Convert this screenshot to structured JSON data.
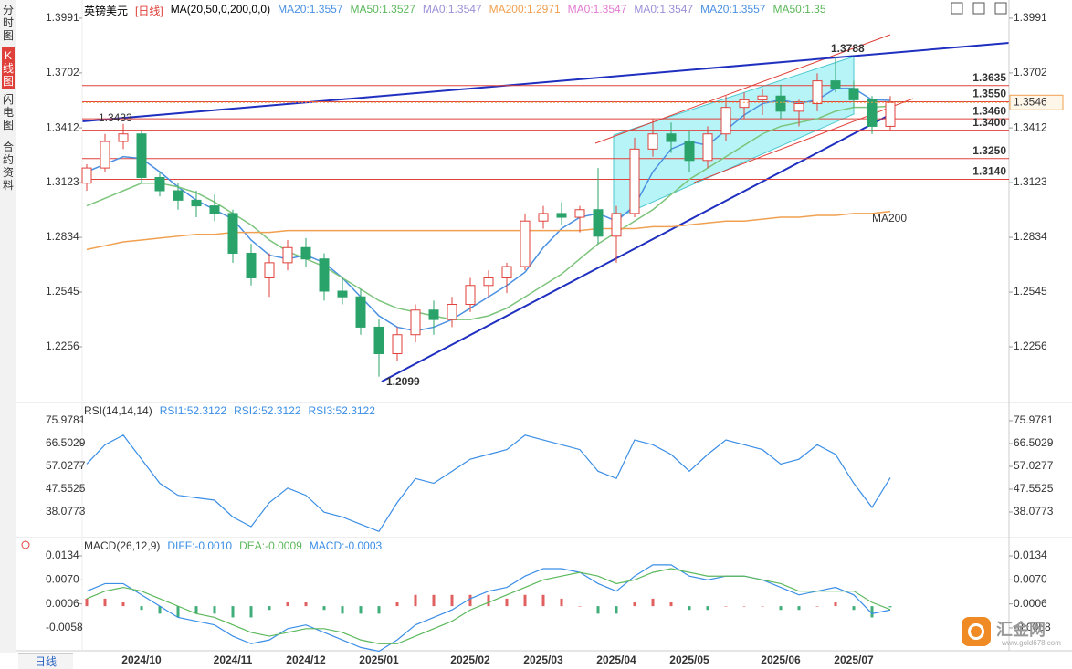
{
  "sidebar": {
    "tabs": [
      "分时图",
      "K线图",
      "闪电图",
      "合约资料"
    ],
    "active": 1
  },
  "legend": {
    "symbol": "英镑美元",
    "period": "[日线]",
    "ma_label": "MA(20,50,0,200,0,0)",
    "items": [
      {
        "text": "MA20:1.3557",
        "color": "#4a90e2"
      },
      {
        "text": "MA50:1.3527",
        "color": "#5cb85c"
      },
      {
        "text": "MA0:1.3547",
        "color": "#9b8fd6"
      },
      {
        "text": "MA200:1.2971",
        "color": "#f0a050"
      },
      {
        "text": "MA0:1.3547",
        "color": "#e27ad0"
      },
      {
        "text": "MA0:1.3547",
        "color": "#9b8fd6"
      },
      {
        "text": "MA20:1.3557",
        "color": "#4a90e2"
      },
      {
        "text": "MA50:1.35",
        "color": "#5cb85c"
      }
    ]
  },
  "chart_data": [
    {
      "type": "candlestick",
      "categories": [
        null,
        null,
        null,
        "2024/10",
        null,
        null,
        null,
        null,
        "2024/11",
        null,
        null,
        null,
        "2024/12",
        null,
        null,
        null,
        "2025/01",
        null,
        null,
        null,
        null,
        "2025/02",
        null,
        null,
        null,
        "2025/03",
        null,
        null,
        null,
        "2025/04",
        null,
        null,
        null,
        "2025/05",
        null,
        null,
        null,
        null,
        "2025/06",
        null,
        null,
        null,
        "2025/07",
        null,
        null
      ],
      "open": [
        1.312,
        1.32,
        1.334,
        1.338,
        1.315,
        1.308,
        1.303,
        1.3,
        1.296,
        1.275,
        1.262,
        1.27,
        1.278,
        1.272,
        1.255,
        1.252,
        1.236,
        1.222,
        1.232,
        1.245,
        1.24,
        1.248,
        1.258,
        1.262,
        1.268,
        1.292,
        1.296,
        1.294,
        1.298,
        1.284,
        1.296,
        1.33,
        1.338,
        1.334,
        1.324,
        1.338,
        1.352,
        1.356,
        1.358,
        1.35,
        1.354,
        1.366,
        1.362,
        1.356,
        1.342
      ],
      "high": [
        1.322,
        1.338,
        1.3433,
        1.34,
        1.318,
        1.312,
        1.308,
        1.306,
        1.298,
        1.28,
        1.275,
        1.282,
        1.283,
        1.275,
        1.262,
        1.256,
        1.24,
        1.236,
        1.248,
        1.25,
        1.252,
        1.262,
        1.266,
        1.27,
        1.296,
        1.3,
        1.302,
        1.3,
        1.32,
        1.3,
        1.336,
        1.346,
        1.344,
        1.34,
        1.342,
        1.358,
        1.36,
        1.362,
        1.364,
        1.356,
        1.37,
        1.3788,
        1.366,
        1.358,
        1.358
      ],
      "low": [
        1.308,
        1.318,
        1.33,
        1.312,
        1.305,
        1.298,
        1.294,
        1.292,
        1.27,
        1.258,
        1.252,
        1.266,
        1.268,
        1.25,
        1.248,
        1.232,
        1.2099,
        1.218,
        1.228,
        1.232,
        1.236,
        1.244,
        1.252,
        1.254,
        1.266,
        1.288,
        1.29,
        1.286,
        1.28,
        1.27,
        1.294,
        1.326,
        1.328,
        1.318,
        1.32,
        1.334,
        1.346,
        1.348,
        1.346,
        1.342,
        1.35,
        1.36,
        1.352,
        1.338,
        1.34
      ],
      "close": [
        1.32,
        1.334,
        1.338,
        1.315,
        1.308,
        1.303,
        1.3,
        1.296,
        1.275,
        1.262,
        1.27,
        1.278,
        1.272,
        1.255,
        1.252,
        1.236,
        1.222,
        1.232,
        1.245,
        1.24,
        1.248,
        1.258,
        1.262,
        1.268,
        1.292,
        1.296,
        1.294,
        1.298,
        1.284,
        1.296,
        1.33,
        1.338,
        1.334,
        1.324,
        1.338,
        1.352,
        1.356,
        1.358,
        1.35,
        1.354,
        1.366,
        1.362,
        1.356,
        1.342,
        1.3546
      ],
      "up_color": "#e0403a",
      "down_color": "#2aa36b",
      "series": [
        {
          "color": "#4a90e2",
          "values": [
            1.318,
            1.322,
            1.326,
            1.325,
            1.318,
            1.31,
            1.303,
            1.298,
            1.293,
            1.282,
            1.274,
            1.272,
            1.274,
            1.27,
            1.262,
            1.252,
            1.242,
            1.236,
            1.234,
            1.236,
            1.24,
            1.246,
            1.252,
            1.258,
            1.265,
            1.278,
            1.288,
            1.294,
            1.296,
            1.292,
            1.3,
            1.318,
            1.33,
            1.334,
            1.332,
            1.34,
            1.348,
            1.354,
            1.356,
            1.354,
            1.356,
            1.362,
            1.362,
            1.356,
            1.3557
          ]
        },
        {
          "color": "#7cc47c",
          "values": [
            1.3,
            1.304,
            1.308,
            1.312,
            1.312,
            1.31,
            1.307,
            1.302,
            1.296,
            1.29,
            1.282,
            1.276,
            1.272,
            1.268,
            1.262,
            1.256,
            1.25,
            1.246,
            1.244,
            1.242,
            1.24,
            1.24,
            1.242,
            1.246,
            1.252,
            1.258,
            1.264,
            1.272,
            1.28,
            1.286,
            1.292,
            1.298,
            1.306,
            1.314,
            1.32,
            1.326,
            1.332,
            1.338,
            1.342,
            1.344,
            1.346,
            1.35,
            1.352,
            1.352,
            1.3527
          ]
        },
        {
          "name": "MA200",
          "color": "#f0a050",
          "values": [
            1.277,
            1.279,
            1.281,
            1.282,
            1.283,
            1.284,
            1.285,
            1.285,
            1.286,
            1.286,
            1.286,
            1.287,
            1.287,
            1.287,
            1.287,
            1.287,
            1.287,
            1.287,
            1.287,
            1.287,
            1.287,
            1.287,
            1.287,
            1.287,
            1.287,
            1.287,
            1.287,
            1.287,
            1.288,
            1.288,
            1.288,
            1.289,
            1.289,
            1.29,
            1.291,
            1.292,
            1.292,
            1.293,
            1.294,
            1.294,
            1.295,
            1.295,
            1.296,
            1.296,
            1.2971
          ]
        }
      ],
      "hlines": [
        1.3635,
        {
          "value": 1.355,
          "label": "1.3550"
        },
        {
          "value": 1.346,
          "label": "1.3460"
        },
        {
          "value": 1.34,
          "label": "1.3400"
        },
        {
          "value": 1.325,
          "label": "1.3250"
        },
        {
          "value": 1.314,
          "label": "1.3140"
        }
      ],
      "hline_color": "#e0403a",
      "ylim": [
        1.1967,
        1.4087
      ],
      "yticks": [
        1.3991,
        1.3702,
        1.3412,
        1.3123,
        1.2834,
        1.2545,
        1.2256
      ]
    },
    {
      "type": "line",
      "legend": [
        {
          "text": "RSI(14,14,14)",
          "color": "#333333"
        },
        {
          "text": "RSI1:52.3122",
          "color": "#3a8ee6"
        },
        {
          "text": "RSI2:52.3122",
          "color": "#3a8ee6"
        },
        {
          "text": "RSI3:52.3122",
          "color": "#3a8ee6"
        }
      ],
      "series": [
        {
          "color": "#3a8ee6",
          "values": [
            58,
            66,
            70,
            60,
            50,
            45,
            44,
            43,
            36,
            32,
            42,
            48,
            45,
            38,
            36,
            33,
            30,
            42,
            52,
            50,
            55,
            60,
            62,
            64,
            70,
            68,
            66,
            64,
            55,
            52,
            68,
            66,
            62,
            55,
            62,
            68,
            66,
            64,
            58,
            60,
            66,
            62,
            50,
            40,
            52.3122
          ]
        }
      ],
      "ylim": [
        27.84,
        83.18
      ],
      "yticks": [
        75.9781,
        66.5029,
        57.0277,
        47.5525,
        38.0773
      ]
    },
    {
      "type": "macd",
      "legend": [
        {
          "text": "MACD(26,12,9)",
          "color": "#333333"
        },
        {
          "text": "DIFF:-0.0010",
          "color": "#3a8ee6"
        },
        {
          "text": "DEA:-0.0009",
          "color": "#5cb85c"
        },
        {
          "text": "MACD:-0.0003",
          "color": "#3a8ee6"
        }
      ],
      "series": [
        {
          "color": "#3a8ee6",
          "values": [
            0.004,
            0.006,
            0.006,
            0.003,
            0.0,
            -0.003,
            -0.004,
            -0.005,
            -0.008,
            -0.01,
            -0.009,
            -0.006,
            -0.005,
            -0.007,
            -0.009,
            -0.011,
            -0.012,
            -0.009,
            -0.005,
            -0.003,
            -0.001,
            0.002,
            0.004,
            0.005,
            0.008,
            0.01,
            0.01,
            0.009,
            0.006,
            0.004,
            0.008,
            0.011,
            0.011,
            0.008,
            0.007,
            0.008,
            0.008,
            0.007,
            0.005,
            0.003,
            0.004,
            0.005,
            0.003,
            -0.002,
            -0.001
          ]
        },
        {
          "color": "#5cb85c",
          "values": [
            0.002,
            0.004,
            0.005,
            0.004,
            0.002,
            0.0,
            -0.002,
            -0.003,
            -0.005,
            -0.007,
            -0.008,
            -0.007,
            -0.006,
            -0.006,
            -0.007,
            -0.009,
            -0.01,
            -0.01,
            -0.008,
            -0.006,
            -0.004,
            -0.001,
            0.001,
            0.003,
            0.005,
            0.007,
            0.008,
            0.009,
            0.008,
            0.006,
            0.007,
            0.009,
            0.01,
            0.009,
            0.008,
            0.008,
            0.008,
            0.007,
            0.006,
            0.004,
            0.004,
            0.004,
            0.004,
            0.001,
            -0.0009
          ]
        }
      ],
      "histogram": [
        0.002,
        0.002,
        0.001,
        -0.001,
        -0.002,
        -0.003,
        -0.002,
        -0.002,
        -0.003,
        -0.003,
        -0.001,
        0.001,
        0.001,
        -0.001,
        -0.002,
        -0.002,
        -0.002,
        0.001,
        0.003,
        0.003,
        0.003,
        0.003,
        0.003,
        0.002,
        0.003,
        0.003,
        0.002,
        0,
        -0.002,
        -0.002,
        0.001,
        0.002,
        0.001,
        -0.001,
        -0.001,
        0,
        0,
        0,
        -0.001,
        -0.001,
        0,
        0.001,
        -0.001,
        -0.003,
        -0.0003
      ],
      "up_color": "#e06060",
      "down_color": "#3fae7a",
      "ylim": [
        -0.01164,
        0.01802
      ],
      "yticks": [
        0.0134,
        {
          "value": 0.007,
          "label": "0.0070"
        },
        0.0006,
        -0.0058
      ]
    }
  ],
  "footer": {
    "period_tab": "日线"
  },
  "watermark": {
    "name": "汇金网",
    "url": "www.gold678.com"
  }
}
